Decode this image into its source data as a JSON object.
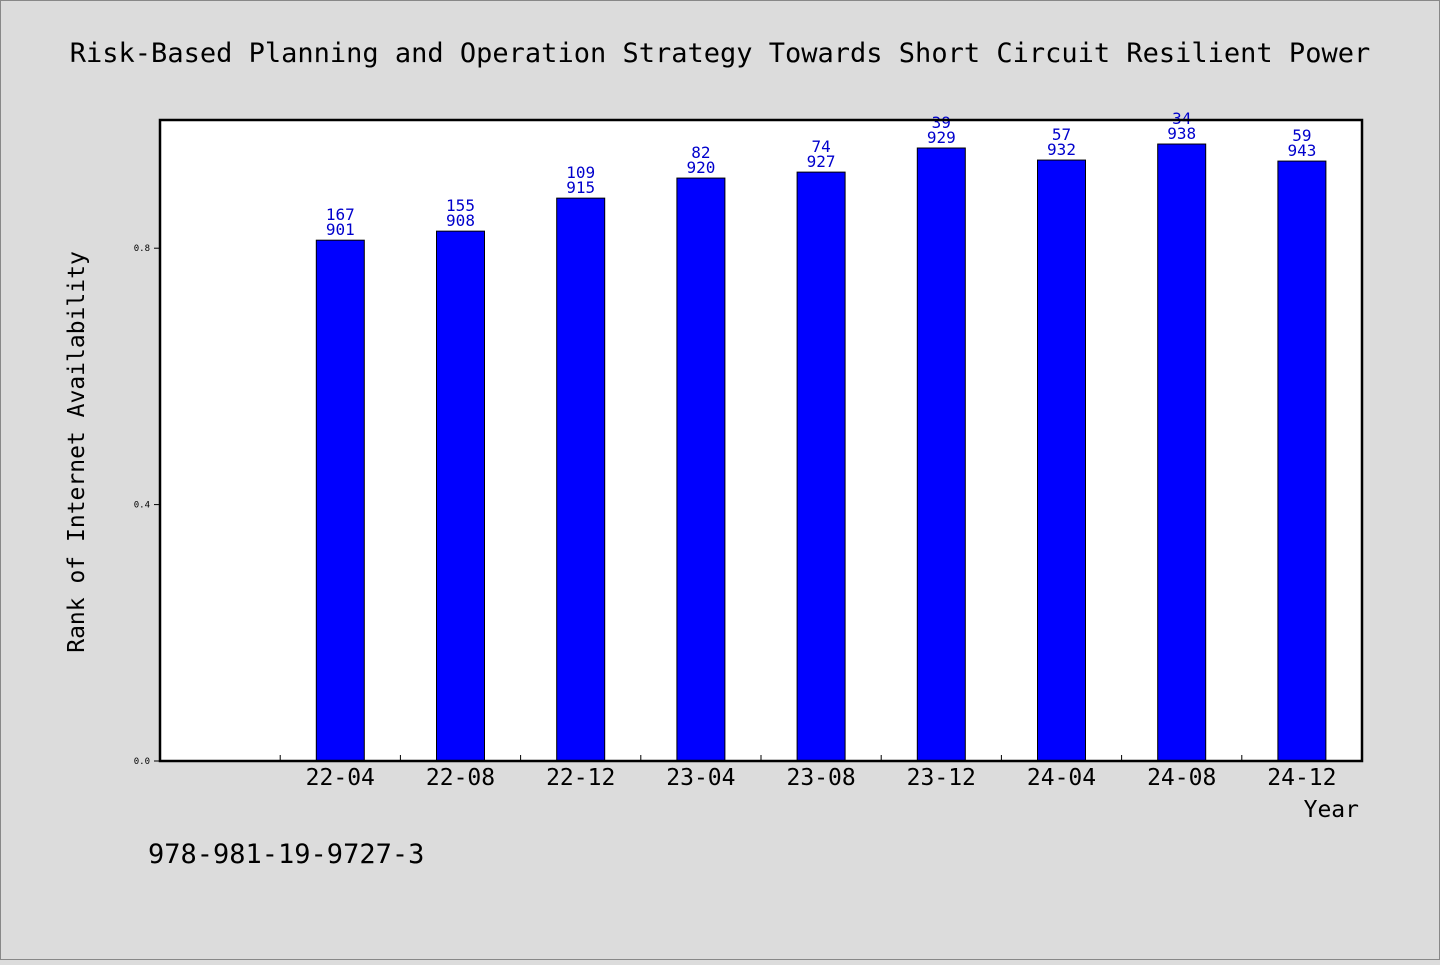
{
  "colors": {
    "background": "#dcdcdc",
    "plot_background": "#ffffff",
    "bar_fill": "#0000ff",
    "label_color": "#0000cc",
    "text_color": "#000000"
  },
  "footer_id": "978-981-19-9727-3",
  "chart_data": {
    "type": "bar",
    "title": "Risk-Based Planning and Operation Strategy Towards Short Circuit Resilient Power",
    "xlabel": "Year",
    "ylabel": "Rank of Internet Availability",
    "categories": [
      "22-04",
      "22-08",
      "22-12",
      "23-04",
      "23-08",
      "23-12",
      "24-04",
      "24-08",
      "24-12"
    ],
    "values": [
      0.8125,
      0.8266,
      0.8781,
      0.9094,
      0.9187,
      0.9563,
      0.9375,
      0.9625,
      0.9359
    ],
    "bar_labels_top": [
      "167",
      "155",
      "109",
      "82",
      "74",
      "39",
      "57",
      "34",
      "59"
    ],
    "bar_labels_bottom": [
      "901",
      "908",
      "915",
      "920",
      "927",
      "929",
      "932",
      "938",
      "943"
    ],
    "ylim": [
      0,
      1.0
    ],
    "yticks": [
      0.0,
      0.4,
      0.8
    ],
    "ytick_labels": [
      "0.0",
      "0.4",
      "0.8"
    ],
    "x_slot_count": 10,
    "grid": false,
    "legend": false
  }
}
